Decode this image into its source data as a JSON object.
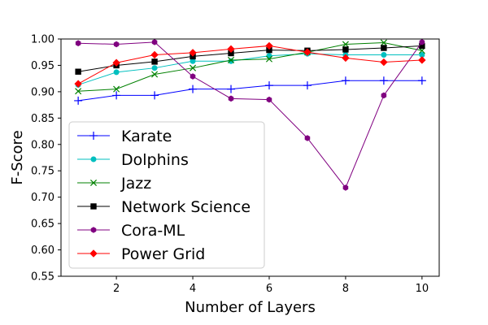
{
  "chart_data": {
    "type": "line",
    "xlabel": "Number of Layers",
    "ylabel": "F-Score",
    "xlim": [
      0.55,
      10.45
    ],
    "ylim": [
      0.55,
      1.0
    ],
    "x_ticks": [
      "2",
      "4",
      "6",
      "8",
      "10"
    ],
    "y_ticks": [
      "0.55",
      "0.60",
      "0.65",
      "0.70",
      "0.75",
      "0.80",
      "0.85",
      "0.90",
      "0.95",
      "1.00"
    ],
    "grid": false,
    "legend_position": "center-left",
    "x": [
      1,
      2,
      3,
      4,
      5,
      6,
      7,
      8,
      9,
      10
    ],
    "series": [
      {
        "name": "Karate",
        "color": "#0000ff",
        "marker": "plus",
        "values": [
          0.883,
          0.893,
          0.893,
          0.905,
          0.905,
          0.912,
          0.912,
          0.921,
          0.921,
          0.921
        ]
      },
      {
        "name": "Dolphins",
        "color": "#00bfbf",
        "marker": "circle",
        "values": [
          0.913,
          0.937,
          0.945,
          0.958,
          0.958,
          0.968,
          0.972,
          0.97,
          0.97,
          0.97
        ]
      },
      {
        "name": "Jazz",
        "color": "#008000",
        "marker": "x",
        "values": [
          0.901,
          0.905,
          0.933,
          0.945,
          0.96,
          0.962,
          0.975,
          0.99,
          0.993,
          0.978
        ]
      },
      {
        "name": "Network Science",
        "color": "#000000",
        "marker": "square",
        "values": [
          0.938,
          0.95,
          0.957,
          0.967,
          0.973,
          0.979,
          0.978,
          0.98,
          0.983,
          0.987
        ]
      },
      {
        "name": "Cora-ML",
        "color": "#800080",
        "marker": "hexagon",
        "values": [
          0.992,
          0.99,
          0.994,
          0.929,
          0.887,
          0.885,
          0.812,
          0.718,
          0.893,
          0.994
        ]
      },
      {
        "name": "Power Grid",
        "color": "#ff0000",
        "marker": "diamond",
        "values": [
          0.915,
          0.955,
          0.97,
          0.974,
          0.981,
          0.987,
          0.975,
          0.964,
          0.956,
          0.96
        ]
      }
    ]
  }
}
